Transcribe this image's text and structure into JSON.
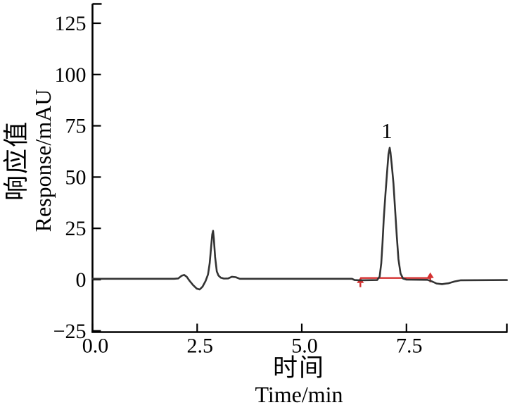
{
  "figure": {
    "y_axis_label_zh": "响应值",
    "y_axis_label_en": "Response/mAU",
    "x_axis_label_zh": "时间",
    "x_axis_label_en": "Time/min"
  },
  "colors": {
    "axis": "#000000",
    "trace": "#333333",
    "integration": "#d43030",
    "text": "#000000"
  },
  "chart_data": {
    "type": "line",
    "title": "",
    "xlabel": "时间 Time/min",
    "ylabel": "响应值 Response/mAU",
    "xlim": [
      0,
      9.9
    ],
    "ylim": [
      -25,
      134.6
    ],
    "grid": false,
    "legend": "none",
    "x_ticks": [
      {
        "value": 0.0,
        "label": "0.0"
      },
      {
        "value": 2.5,
        "label": "2.5"
      },
      {
        "value": 5.0,
        "label": "5.0"
      },
      {
        "value": 7.5,
        "label": "7.5"
      }
    ],
    "y_ticks": [
      {
        "value": -25,
        "label": "−25"
      },
      {
        "value": 0,
        "label": "0"
      },
      {
        "value": 25,
        "label": "25"
      },
      {
        "value": 50,
        "label": "50"
      },
      {
        "value": 75,
        "label": "75"
      },
      {
        "value": 100,
        "label": "100"
      },
      {
        "value": 125,
        "label": "125"
      }
    ],
    "series": [
      {
        "name": "chromatogram",
        "color": "#333333",
        "points": [
          [
            0.0,
            0.4
          ],
          [
            1.95,
            0.4
          ],
          [
            2.05,
            0.6
          ],
          [
            2.13,
            1.9
          ],
          [
            2.19,
            2.3
          ],
          [
            2.25,
            1.4
          ],
          [
            2.32,
            -0.6
          ],
          [
            2.4,
            -2.6
          ],
          [
            2.49,
            -4.4
          ],
          [
            2.56,
            -4.8
          ],
          [
            2.63,
            -3.4
          ],
          [
            2.7,
            -0.8
          ],
          [
            2.76,
            2.5
          ],
          [
            2.8,
            8.0
          ],
          [
            2.83,
            15.0
          ],
          [
            2.86,
            22.0
          ],
          [
            2.88,
            23.8
          ],
          [
            2.9,
            20.0
          ],
          [
            2.93,
            11.0
          ],
          [
            2.97,
            4.0
          ],
          [
            3.01,
            2.0
          ],
          [
            3.06,
            1.0
          ],
          [
            3.14,
            0.5
          ],
          [
            3.24,
            0.6
          ],
          [
            3.33,
            1.4
          ],
          [
            3.42,
            1.2
          ],
          [
            3.52,
            0.4
          ],
          [
            4.5,
            0.4
          ],
          [
            6.2,
            0.4
          ],
          [
            6.26,
            -0.2
          ],
          [
            6.4,
            -0.3
          ],
          [
            6.8,
            -0.2
          ],
          [
            6.86,
            1.5
          ],
          [
            6.9,
            8.0
          ],
          [
            6.93,
            18.0
          ],
          [
            6.96,
            30.0
          ],
          [
            7.0,
            42.0
          ],
          [
            7.04,
            53.0
          ],
          [
            7.07,
            61.0
          ],
          [
            7.1,
            64.3
          ],
          [
            7.12,
            62.0
          ],
          [
            7.15,
            56.0
          ],
          [
            7.19,
            47.0
          ],
          [
            7.23,
            34.0
          ],
          [
            7.27,
            21.0
          ],
          [
            7.31,
            10.0
          ],
          [
            7.36,
            3.0
          ],
          [
            7.42,
            0.5
          ],
          [
            7.5,
            0.0
          ],
          [
            8.0,
            -0.1
          ],
          [
            8.1,
            -0.8
          ],
          [
            8.22,
            -1.9
          ],
          [
            8.35,
            -2.2
          ],
          [
            8.5,
            -1.8
          ],
          [
            8.65,
            -0.9
          ],
          [
            8.8,
            -0.3
          ],
          [
            9.9,
            -0.2
          ]
        ]
      }
    ],
    "integration": {
      "color": "#d43030",
      "baseline": {
        "x_start": 6.4,
        "x_end": 8.07,
        "y": 0.8
      },
      "markers": [
        {
          "x": 6.4,
          "type": "start-arrow"
        },
        {
          "x": 8.07,
          "type": "stop-arrow"
        }
      ]
    },
    "annotations": [
      {
        "text": "1",
        "x": 7.03,
        "y": 72
      }
    ]
  }
}
